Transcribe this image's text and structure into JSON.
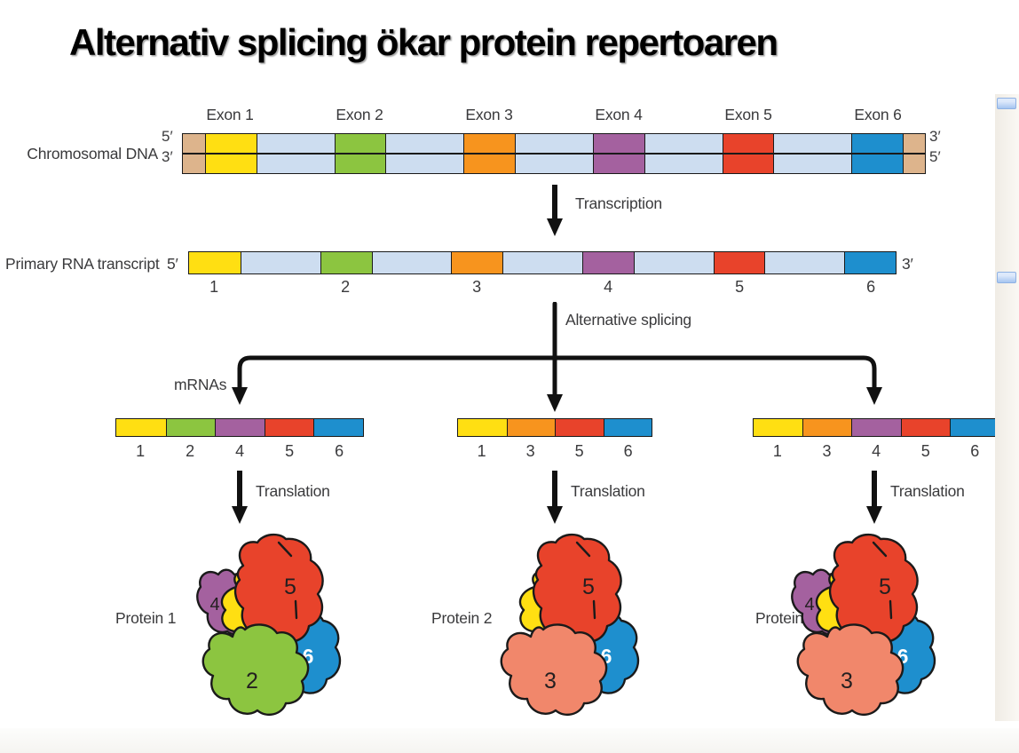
{
  "title": "Alternativ splicing ökar protein repertoaren",
  "colors": {
    "outline": "#1a1a1a",
    "intron": "#cdddf0",
    "cap": "#ddb48c",
    "exon1": "#ffdf12",
    "exon2": "#8cc540",
    "exon3": "#f7941e",
    "exon4": "#a4619f",
    "exon5": "#e8432b",
    "exon6": "#1e8fce"
  },
  "subunit_colors": {
    "1": "#ffdf12",
    "2": "#8cc540",
    "3": "#f1876b",
    "4": "#a4619f",
    "5": "#e8432b",
    "6": "#1e8fce"
  },
  "dna": {
    "label": "Chromosomal DNA",
    "five_prime_left": "5′",
    "three_prime_left": "3′",
    "three_prime_right": "3′",
    "five_prime_right": "5′",
    "exon_labels": [
      "Exon 1",
      "Exon 2",
      "Exon 3",
      "Exon 4",
      "Exon 5",
      "Exon 6"
    ],
    "segments": [
      {
        "type": "cap"
      },
      {
        "type": "exon",
        "exon": 1
      },
      {
        "type": "intron"
      },
      {
        "type": "exon",
        "exon": 2
      },
      {
        "type": "intron"
      },
      {
        "type": "exon",
        "exon": 3
      },
      {
        "type": "intron"
      },
      {
        "type": "exon",
        "exon": 4
      },
      {
        "type": "intron"
      },
      {
        "type": "exon",
        "exon": 5
      },
      {
        "type": "intron"
      },
      {
        "type": "exon",
        "exon": 6
      },
      {
        "type": "cap"
      }
    ]
  },
  "transcription_label": "Transcription",
  "rna": {
    "label": "Primary RNA transcript",
    "five_prime": "5′",
    "three_prime": "3′",
    "segments": [
      {
        "type": "exon",
        "exon": 1
      },
      {
        "type": "intron"
      },
      {
        "type": "exon",
        "exon": 2
      },
      {
        "type": "intron"
      },
      {
        "type": "exon",
        "exon": 3
      },
      {
        "type": "intron"
      },
      {
        "type": "exon",
        "exon": 4
      },
      {
        "type": "intron"
      },
      {
        "type": "exon",
        "exon": 5
      },
      {
        "type": "intron"
      },
      {
        "type": "exon",
        "exon": 6
      }
    ]
  },
  "alt_splicing_label": "Alternative splicing",
  "mrnas_label": "mRNAs",
  "translation_label": "Translation",
  "mrnas": [
    {
      "exons": [
        1,
        2,
        4,
        5,
        6
      ]
    },
    {
      "exons": [
        1,
        3,
        5,
        6
      ]
    },
    {
      "exons": [
        1,
        3,
        4,
        5,
        6
      ]
    }
  ],
  "proteins": [
    {
      "label": "Protein 1",
      "subunits": [
        4,
        6,
        1,
        5,
        2
      ]
    },
    {
      "label": "Protein 2",
      "subunits": [
        6,
        1,
        5,
        3
      ]
    },
    {
      "label": "Protein 3",
      "subunits": [
        4,
        6,
        1,
        5,
        3
      ]
    }
  ]
}
